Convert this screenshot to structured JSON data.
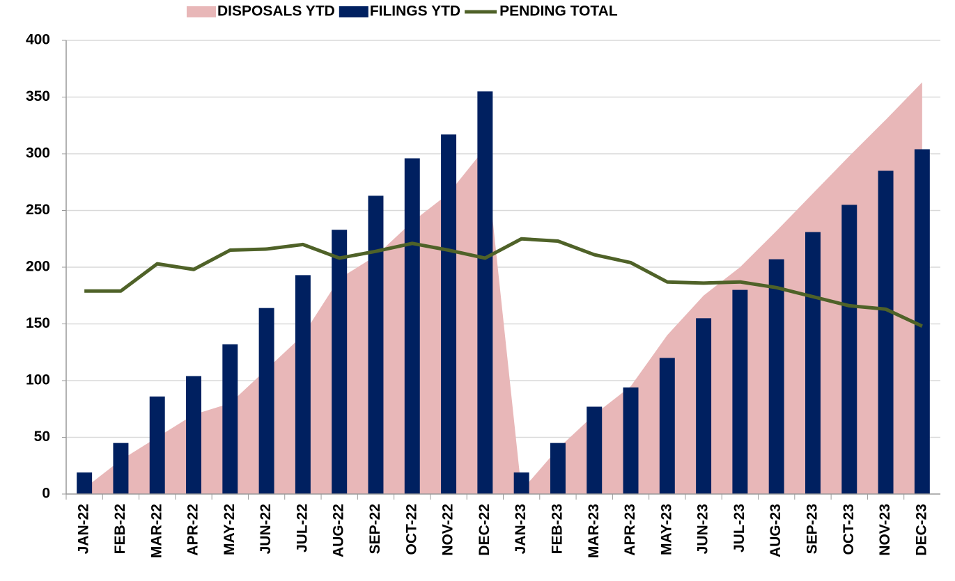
{
  "chart_data": {
    "type": "combo",
    "categories": [
      "JAN-22",
      "FEB-22",
      "MAR-22",
      "APR-22",
      "MAY-22",
      "JUN-22",
      "JUL-22",
      "AUG-22",
      "SEP-22",
      "OCT-22",
      "NOV-22",
      "DEC-22",
      "JAN-23",
      "FEB-23",
      "MAR-23",
      "APR-23",
      "MAY-23",
      "JUN-23",
      "JUL-23",
      "AUG-23",
      "SEP-23",
      "OCT-23",
      "NOV-23",
      "DEC-23"
    ],
    "series": [
      {
        "name": "DISPOSALS YTD",
        "kind": "area",
        "color": "#e8b7b8",
        "values": [
          5,
          30,
          50,
          70,
          80,
          110,
          140,
          190,
          210,
          240,
          265,
          305,
          3,
          40,
          70,
          95,
          140,
          175,
          200,
          232,
          265,
          298,
          330,
          363
        ]
      },
      {
        "name": "FILINGS YTD",
        "kind": "bar",
        "color": "#002060",
        "values": [
          19,
          45,
          86,
          104,
          132,
          164,
          193,
          233,
          263,
          296,
          317,
          355,
          19,
          45,
          77,
          94,
          120,
          155,
          180,
          207,
          231,
          255,
          285,
          304
        ]
      },
      {
        "name": "PENDING TOTAL",
        "kind": "line",
        "color": "#4f6228",
        "values": [
          179,
          179,
          203,
          198,
          215,
          216,
          220,
          208,
          214,
          221,
          215,
          208,
          225,
          223,
          211,
          204,
          187,
          186,
          187,
          182,
          174,
          166,
          163,
          148
        ]
      }
    ],
    "ylim": [
      0,
      400
    ],
    "yticks": [
      0,
      50,
      100,
      150,
      200,
      250,
      300,
      350,
      400
    ],
    "grid": true,
    "legend": "top"
  }
}
